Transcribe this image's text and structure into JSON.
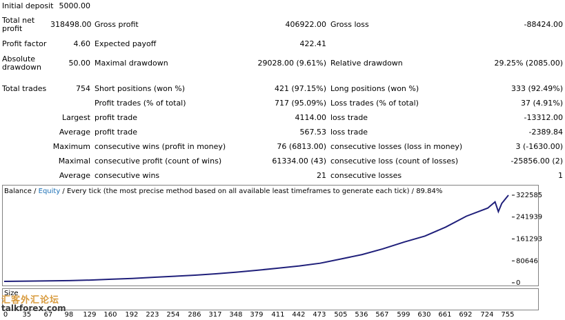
{
  "report": {
    "rows": [
      {
        "h": 18,
        "cells": [
          {
            "t": "Initial deposit"
          },
          {
            "t": "5000.00",
            "num": true
          },
          {
            "t": ""
          },
          {
            "t": ""
          },
          {
            "t": ""
          },
          {
            "t": ""
          }
        ]
      },
      {
        "h": 36,
        "cells": [
          {
            "t": "Total net profit",
            "wrap": true
          },
          {
            "t": "318498.00",
            "num": true
          },
          {
            "t": "Gross profit"
          },
          {
            "t": "406922.00",
            "num": true
          },
          {
            "t": "Gross loss"
          },
          {
            "t": "-88424.00",
            "num": true
          }
        ]
      },
      {
        "h": 20,
        "cells": [
          {
            "t": "Profit factor"
          },
          {
            "t": "4.60",
            "num": true
          },
          {
            "t": "Expected payoff"
          },
          {
            "t": "422.41",
            "num": true
          },
          {
            "t": ""
          },
          {
            "t": ""
          }
        ]
      },
      {
        "h": 36,
        "cells": [
          {
            "t": "Absolute drawdown",
            "wrap": true
          },
          {
            "t": "50.00",
            "num": true
          },
          {
            "t": "Maximal drawdown"
          },
          {
            "t": "29028.00 (9.61%)",
            "num": true
          },
          {
            "t": "Relative drawdown"
          },
          {
            "t": "29.25% (2085.00)",
            "num": true
          }
        ]
      },
      {
        "h": 8,
        "cells": [
          {
            "t": ""
          },
          {
            "t": ""
          },
          {
            "t": ""
          },
          {
            "t": ""
          },
          {
            "t": ""
          },
          {
            "t": ""
          }
        ]
      },
      {
        "h": 21,
        "cells": [
          {
            "t": "Total trades"
          },
          {
            "t": "754",
            "num": true
          },
          {
            "t": "Short positions (won %)"
          },
          {
            "t": "421 (97.15%)",
            "num": true
          },
          {
            "t": "Long positions (won %)"
          },
          {
            "t": "333 (92.49%)",
            "num": true
          }
        ]
      },
      {
        "h": 21,
        "cells": [
          {
            "t": ""
          },
          {
            "t": ""
          },
          {
            "t": "Profit trades (% of total)"
          },
          {
            "t": "717 (95.09%)",
            "num": true
          },
          {
            "t": "Loss trades (% of total)"
          },
          {
            "t": "37 (4.91%)",
            "num": true
          }
        ]
      },
      {
        "h": 21,
        "cells": [
          {
            "t": ""
          },
          {
            "t": "Largest",
            "right": true
          },
          {
            "t": "profit trade"
          },
          {
            "t": "4114.00",
            "num": true
          },
          {
            "t": "loss trade"
          },
          {
            "t": "-13312.00",
            "num": true
          }
        ]
      },
      {
        "h": 21,
        "cells": [
          {
            "t": ""
          },
          {
            "t": "Average",
            "right": true
          },
          {
            "t": "profit trade"
          },
          {
            "t": "567.53",
            "num": true
          },
          {
            "t": "loss trade"
          },
          {
            "t": "-2389.84",
            "num": true
          }
        ]
      },
      {
        "h": 21,
        "cells": [
          {
            "t": ""
          },
          {
            "t": "Maximum",
            "right": true
          },
          {
            "t": "consecutive wins (profit in money)"
          },
          {
            "t": "76 (6813.00)",
            "num": true
          },
          {
            "t": "consecutive losses (loss in money)"
          },
          {
            "t": "3 (-1630.00)",
            "num": true
          }
        ]
      },
      {
        "h": 21,
        "cells": [
          {
            "t": ""
          },
          {
            "t": "Maximal",
            "right": true
          },
          {
            "t": "consecutive profit (count of wins)"
          },
          {
            "t": "61334.00 (43)",
            "num": true
          },
          {
            "t": "consecutive loss (count of losses)"
          },
          {
            "t": "-25856.00 (2)",
            "num": true
          }
        ]
      },
      {
        "h": 21,
        "cells": [
          {
            "t": ""
          },
          {
            "t": "Average",
            "right": true
          },
          {
            "t": "consecutive wins"
          },
          {
            "t": "21",
            "num": true
          },
          {
            "t": "consecutive losses"
          },
          {
            "t": "1",
            "num": true
          }
        ]
      }
    ]
  },
  "chart": {
    "title_balance": "Balance",
    "title_sep1": " / ",
    "title_equity": "Equity",
    "title_rest": " / Every tick (the most precise method based on all available least timeframes to generate each tick) / 89.84%",
    "size_label": "Size",
    "watermark": "汇客外汇论坛",
    "watermark2": "talkforex.com",
    "line_color": "#1f1f7a",
    "equity_color": "#1a6fb5"
  },
  "chart_data": {
    "type": "line",
    "yticks": [
      "322585",
      "241939",
      "161293",
      "80646",
      "0"
    ],
    "ytick_values": [
      322585,
      241939,
      161293,
      80646,
      0
    ],
    "xticks": [
      "0",
      "35",
      "67",
      "98",
      "129",
      "160",
      "192",
      "223",
      "254",
      "286",
      "317",
      "348",
      "379",
      "411",
      "442",
      "473",
      "505",
      "536",
      "567",
      "599",
      "630",
      "661",
      "692",
      "724",
      "755"
    ],
    "ylim": [
      0,
      322585
    ],
    "xlim": [
      0,
      754
    ],
    "series": [
      {
        "name": "Balance",
        "x": [
          0,
          35,
          67,
          98,
          129,
          160,
          192,
          223,
          254,
          286,
          317,
          348,
          379,
          411,
          442,
          473,
          505,
          536,
          567,
          599,
          630,
          661,
          692,
          724,
          735,
          740,
          745,
          755
        ],
        "y": [
          5000,
          6000,
          7000,
          8000,
          10000,
          13000,
          16000,
          20000,
          24000,
          28000,
          33000,
          39000,
          46000,
          54000,
          62000,
          72000,
          88000,
          104000,
          125000,
          150000,
          172000,
          205000,
          245000,
          275000,
          298000,
          262000,
          292000,
          322585
        ]
      }
    ]
  }
}
